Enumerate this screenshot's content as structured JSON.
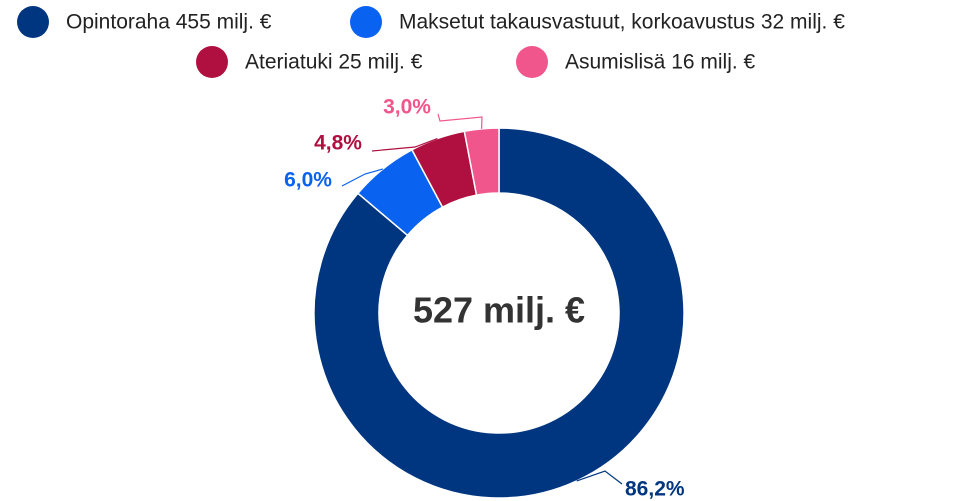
{
  "chart_data": {
    "type": "donut",
    "center_label": "527 milj. €",
    "series": [
      {
        "name": "Opintoraha 455 milj. €",
        "color": "#003580",
        "values": [
          86.2
        ],
        "value_labels": [
          "86,2%"
        ]
      },
      {
        "name": "Maksetut takausvastuut, korkoavustus 32 milj. €",
        "color": "#0a62f0",
        "values": [
          6.0
        ],
        "value_labels": [
          "6,0%"
        ]
      },
      {
        "name": "Ateriatuki 25 milj. €",
        "color": "#b0103f",
        "values": [
          4.8
        ],
        "value_labels": [
          "4,8%"
        ]
      },
      {
        "name": "Asumislisä 16 milj. €",
        "color": "#f0568b",
        "values": [
          3.0
        ],
        "value_labels": [
          "3,0%"
        ]
      }
    ],
    "legend": "top"
  }
}
